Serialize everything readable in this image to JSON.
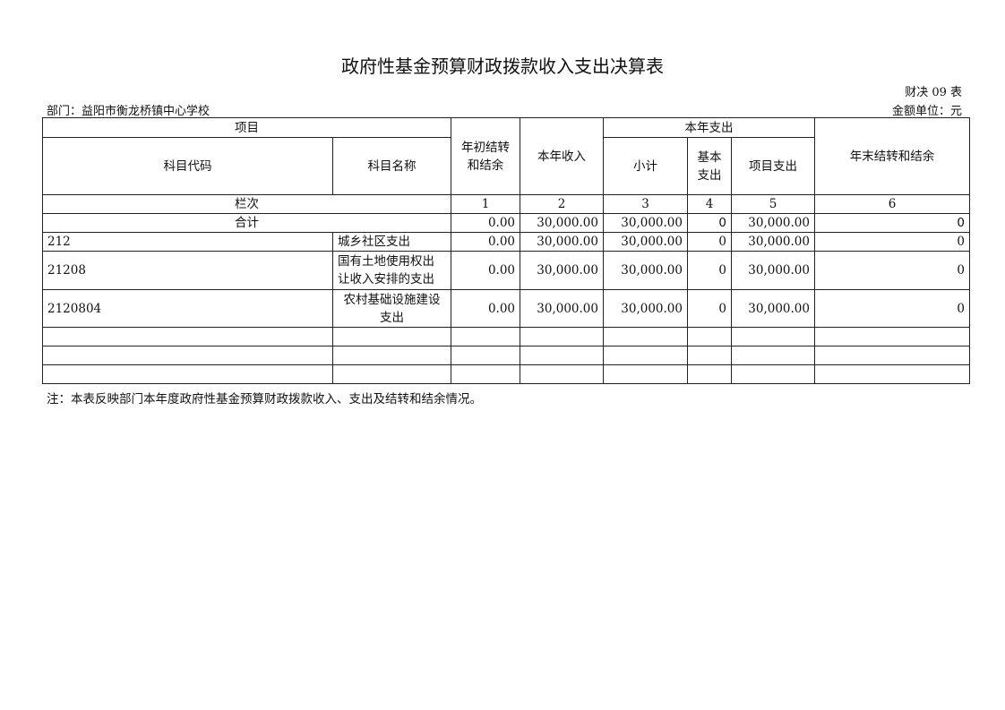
{
  "title": "政府性基金预算财政拨款收入支出决算表",
  "form_no": "财决 09 表",
  "department": "部门：益阳市衡龙桥镇中心学校",
  "unit": "金额单位：元",
  "headers": {
    "item": "项目",
    "code": "科目代码",
    "name": "科目名称",
    "begin": "年初结转和结余",
    "income": "本年收入",
    "expense": "本年支出",
    "subtotal": "小计",
    "basic": "基本支出",
    "project": "项目支出",
    "end": "年末结转和结余",
    "col_index": "栏次",
    "c1": "1",
    "c2": "2",
    "c3": "3",
    "c4": "4",
    "c5": "5",
    "c6": "6"
  },
  "total": {
    "label": "合计",
    "begin": "0.00",
    "income": "30,000.00",
    "subtotal": "30,000.00",
    "basic": "0",
    "project": "30,000.00",
    "end": "0"
  },
  "rows": [
    {
      "code": "212",
      "name": "城乡社区支出",
      "begin": "0.00",
      "income": "30,000.00",
      "subtotal": "30,000.00",
      "basic": "0",
      "project": "30,000.00",
      "end": "0"
    },
    {
      "code": "21208",
      "name": "国有土地使用权出让收入安排的支出",
      "begin": "0.00",
      "income": "30,000.00",
      "subtotal": "30,000.00",
      "basic": "0",
      "project": "30,000.00",
      "end": "0"
    },
    {
      "code": "2120804",
      "name": "农村基础设施建设支出",
      "begin": "0.00",
      "income": "30,000.00",
      "subtotal": "30,000.00",
      "basic": "0",
      "project": "30,000.00",
      "end": "0"
    }
  ],
  "note": "注：本表反映部门本年度政府性基金预算财政拨款收入、支出及结转和结余情况。"
}
